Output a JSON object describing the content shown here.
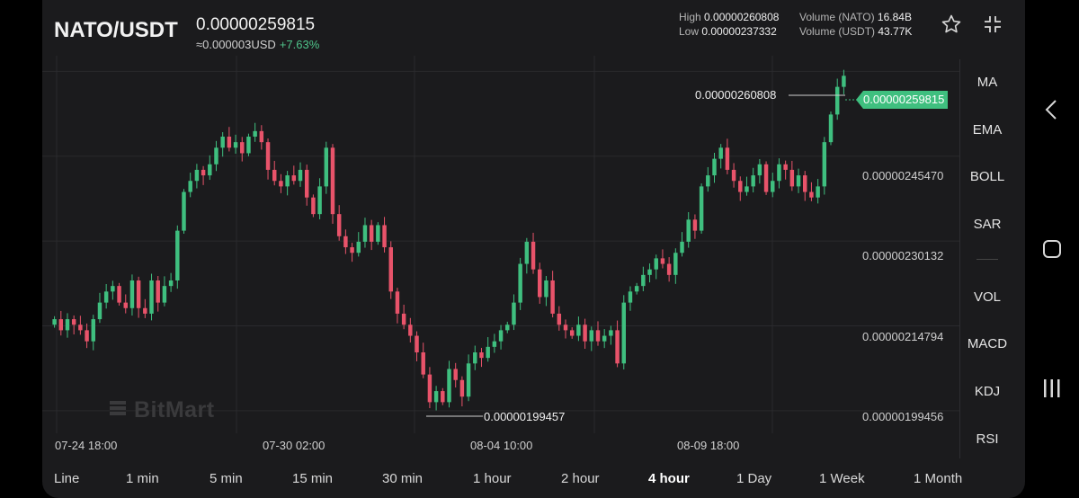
{
  "header": {
    "pair": "NATO/USDT",
    "last_price": "0.00000259815",
    "converted": "≈0.000003USD",
    "change": "+7.63%",
    "high_label": "High",
    "high_value": "0.00000260808",
    "low_label": "Low",
    "low_value": "0.00000237332",
    "vol_base_label": "Volume (NATO)",
    "vol_base_value": "16.84B",
    "vol_quote_label": "Volume (USDT)",
    "vol_quote_value": "43.77K"
  },
  "icons": {
    "favorite": "star-icon",
    "fullscreen": "fullscreen-icon",
    "back": "chevron-left-icon",
    "home": "home-icon",
    "recents": "recents-icon",
    "watermark": "bitmart-logo-icon"
  },
  "colors": {
    "up": "#3fbf7f",
    "down": "#e8536a",
    "background": "#1b1b1d",
    "grid": "#2a2a2d"
  },
  "chart_data": {
    "type": "candlestick",
    "y_ticks": [
      "0.00000245470",
      "0.00000230132",
      "0.00000214794",
      "0.00000199456"
    ],
    "x_ticks": [
      "07-24 18:00",
      "07-30 02:00",
      "08-04 10:00",
      "08-09 18:00"
    ],
    "high_marker": "0.00000260808",
    "low_marker": "0.00000199457",
    "last_price_tag": "0.00000259815",
    "ylim": [
      1.97e-06,
      2.62e-06
    ],
    "candles_oc": [
      [
        2.15e-06,
        2.16e-06
      ],
      [
        2.16e-06,
        2.14e-06
      ],
      [
        2.14e-06,
        2.16e-06
      ],
      [
        2.16e-06,
        2.15e-06
      ],
      [
        2.15e-06,
        2.14e-06
      ],
      [
        2.14e-06,
        2.12e-06
      ],
      [
        2.12e-06,
        2.16e-06
      ],
      [
        2.16e-06,
        2.19e-06
      ],
      [
        2.19e-06,
        2.21e-06
      ],
      [
        2.21e-06,
        2.22e-06
      ],
      [
        2.22e-06,
        2.19e-06
      ],
      [
        2.19e-06,
        2.18e-06
      ],
      [
        2.18e-06,
        2.23e-06
      ],
      [
        2.23e-06,
        2.18e-06
      ],
      [
        2.18e-06,
        2.17e-06
      ],
      [
        2.17e-06,
        2.23e-06
      ],
      [
        2.23e-06,
        2.19e-06
      ],
      [
        2.19e-06,
        2.22e-06
      ],
      [
        2.22e-06,
        2.23e-06
      ],
      [
        2.23e-06,
        2.32e-06
      ],
      [
        2.32e-06,
        2.39e-06
      ],
      [
        2.39e-06,
        2.41e-06
      ],
      [
        2.41e-06,
        2.43e-06
      ],
      [
        2.43e-06,
        2.42e-06
      ],
      [
        2.42e-06,
        2.44e-06
      ],
      [
        2.44e-06,
        2.47e-06
      ],
      [
        2.47e-06,
        2.49e-06
      ],
      [
        2.49e-06,
        2.47e-06
      ],
      [
        2.47e-06,
        2.48e-06
      ],
      [
        2.48e-06,
        2.46e-06
      ],
      [
        2.46e-06,
        2.49e-06
      ],
      [
        2.49e-06,
        2.5e-06
      ],
      [
        2.5e-06,
        2.48e-06
      ],
      [
        2.48e-06,
        2.43e-06
      ],
      [
        2.43e-06,
        2.41e-06
      ],
      [
        2.41e-06,
        2.4e-06
      ],
      [
        2.4e-06,
        2.42e-06
      ],
      [
        2.42e-06,
        2.41e-06
      ],
      [
        2.41e-06,
        2.43e-06
      ],
      [
        2.43e-06,
        2.38e-06
      ],
      [
        2.38e-06,
        2.35e-06
      ],
      [
        2.35e-06,
        2.4e-06
      ],
      [
        2.4e-06,
        2.47e-06
      ],
      [
        2.47e-06,
        2.35e-06
      ],
      [
        2.35e-06,
        2.31e-06
      ],
      [
        2.31e-06,
        2.29e-06
      ],
      [
        2.29e-06,
        2.28e-06
      ],
      [
        2.28e-06,
        2.3e-06
      ],
      [
        2.3e-06,
        2.33e-06
      ],
      [
        2.33e-06,
        2.3e-06
      ],
      [
        2.3e-06,
        2.33e-06
      ],
      [
        2.33e-06,
        2.29e-06
      ],
      [
        2.29e-06,
        2.21e-06
      ],
      [
        2.21e-06,
        2.17e-06
      ],
      [
        2.17e-06,
        2.15e-06
      ],
      [
        2.15e-06,
        2.13e-06
      ],
      [
        2.13e-06,
        2.1e-06
      ],
      [
        2.1e-06,
        2.06e-06
      ],
      [
        2.06e-06,
        2.01e-06
      ],
      [
        2.01e-06,
        2.03e-06
      ],
      [
        2.03e-06,
        2.01e-06
      ],
      [
        2.01e-06,
        2.07e-06
      ],
      [
        2.07e-06,
        2.05e-06
      ],
      [
        2.05e-06,
        2.02e-06
      ],
      [
        2.02e-06,
        2.08e-06
      ],
      [
        2.08e-06,
        2.1e-06
      ],
      [
        2.1e-06,
        2.09e-06
      ],
      [
        2.09e-06,
        2.11e-06
      ],
      [
        2.11e-06,
        2.12e-06
      ],
      [
        2.12e-06,
        2.14e-06
      ],
      [
        2.14e-06,
        2.15e-06
      ],
      [
        2.15e-06,
        2.19e-06
      ],
      [
        2.19e-06,
        2.26e-06
      ],
      [
        2.26e-06,
        2.3e-06
      ],
      [
        2.3e-06,
        2.25e-06
      ],
      [
        2.25e-06,
        2.2e-06
      ],
      [
        2.2e-06,
        2.23e-06
      ],
      [
        2.23e-06,
        2.17e-06
      ],
      [
        2.17e-06,
        2.15e-06
      ],
      [
        2.15e-06,
        2.14e-06
      ],
      [
        2.14e-06,
        2.13e-06
      ],
      [
        2.13e-06,
        2.15e-06
      ],
      [
        2.15e-06,
        2.12e-06
      ],
      [
        2.12e-06,
        2.14e-06
      ],
      [
        2.14e-06,
        2.12e-06
      ],
      [
        2.12e-06,
        2.13e-06
      ],
      [
        2.13e-06,
        2.14e-06
      ],
      [
        2.14e-06,
        2.08e-06
      ],
      [
        2.08e-06,
        2.19e-06
      ],
      [
        2.19e-06,
        2.21e-06
      ],
      [
        2.21e-06,
        2.22e-06
      ],
      [
        2.22e-06,
        2.24e-06
      ],
      [
        2.24e-06,
        2.25e-06
      ],
      [
        2.25e-06,
        2.27e-06
      ],
      [
        2.27e-06,
        2.26e-06
      ],
      [
        2.26e-06,
        2.24e-06
      ],
      [
        2.24e-06,
        2.28e-06
      ],
      [
        2.28e-06,
        2.3e-06
      ],
      [
        2.3e-06,
        2.34e-06
      ],
      [
        2.34e-06,
        2.32e-06
      ],
      [
        2.32e-06,
        2.4e-06
      ],
      [
        2.4e-06,
        2.42e-06
      ],
      [
        2.42e-06,
        2.45e-06
      ],
      [
        2.45e-06,
        2.47e-06
      ],
      [
        2.47e-06,
        2.43e-06
      ],
      [
        2.43e-06,
        2.41e-06
      ],
      [
        2.41e-06,
        2.39e-06
      ],
      [
        2.39e-06,
        2.4e-06
      ],
      [
        2.4e-06,
        2.42e-06
      ],
      [
        2.42e-06,
        2.44e-06
      ],
      [
        2.44e-06,
        2.39e-06
      ],
      [
        2.39e-06,
        2.41e-06
      ],
      [
        2.41e-06,
        2.44e-06
      ],
      [
        2.44e-06,
        2.43e-06
      ],
      [
        2.43e-06,
        2.4e-06
      ],
      [
        2.4e-06,
        2.42e-06
      ],
      [
        2.42e-06,
        2.39e-06
      ],
      [
        2.39e-06,
        2.38e-06
      ],
      [
        2.38e-06,
        2.4e-06
      ],
      [
        2.4e-06,
        2.48e-06
      ],
      [
        2.48e-06,
        2.53e-06
      ],
      [
        2.53e-06,
        2.58e-06
      ],
      [
        2.58e-06,
        2.6e-06
      ]
    ]
  },
  "indicators": [
    "MA",
    "EMA",
    "BOLL",
    "SAR",
    "VOL",
    "MACD",
    "KDJ",
    "RSI"
  ],
  "intervals": [
    "Line",
    "1 min",
    "5 min",
    "15 min",
    "30 min",
    "1 hour",
    "2 hour",
    "4 hour",
    "1 Day",
    "1 Week",
    "1 Month"
  ],
  "active_interval": "4 hour",
  "watermark_text": "BitMart"
}
